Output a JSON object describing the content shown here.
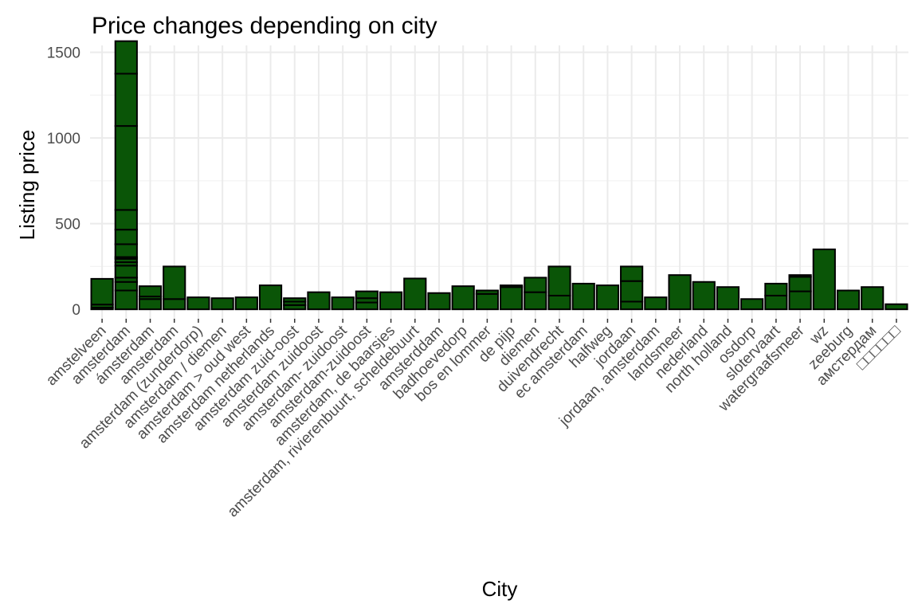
{
  "chart_data": {
    "type": "bar",
    "title": "Price changes depending on city",
    "xlabel": "City",
    "ylabel": "Listing price",
    "ylim": [
      -55,
      1540
    ],
    "yticks": [
      0,
      500,
      1000,
      1500
    ],
    "grid": true,
    "legend": "none",
    "bar_fill": "#0a5507",
    "bar_outline": "#000000",
    "categories": [
      "amstelveen",
      "amsterdam",
      "ámsterdam",
      "amsterdam",
      "amsterdam (zunderdorp)",
      "amsterdam / diemen",
      "amsterdam > oud west",
      "amsterdam netherlands",
      "amsterdam zuid-oost",
      "amsterdam zuidoost",
      "amsterdam- zuidoost",
      "amsterdam-zuidoost",
      "amsterdam, de baarsjes",
      "amsterdam, rivierenbuurt, scheldebuurt",
      "amsterddam",
      "badhoevedorp",
      "bos en lommer",
      "de pijp",
      "diemen",
      "duivendrecht",
      "ec amsterdam",
      "halfweg",
      "jordaan",
      "jordaan, amsterdam",
      "landsmeer",
      "nederland",
      "north holland",
      "osdorp",
      "slotervaart",
      "watergraafsmeer",
      "wz",
      "zeeburg",
      "амстердам",
      "□□□□□□"
    ],
    "values": [
      [
        10,
        18,
        150
      ],
      [
        110,
        50,
        25,
        70,
        20,
        20,
        10,
        75,
        85,
        115,
        490,
        305,
        190
      ],
      [
        60,
        15,
        60
      ],
      [
        60,
        190
      ],
      [
        70
      ],
      [
        65
      ],
      [
        70
      ],
      [
        140
      ],
      [
        25,
        20,
        20
      ],
      [
        100
      ],
      [
        70
      ],
      [
        40,
        25,
        40
      ],
      [
        100
      ],
      [
        180
      ],
      [
        95
      ],
      [
        135
      ],
      [
        90,
        20
      ],
      [
        130,
        10
      ],
      [
        100,
        85
      ],
      [
        80,
        170
      ],
      [
        150
      ],
      [
        140
      ],
      [
        45,
        120,
        85
      ],
      [
        70
      ],
      [
        200
      ],
      [
        160
      ],
      [
        130
      ],
      [
        60
      ],
      [
        80,
        70
      ],
      [
        105,
        85,
        10
      ],
      [
        350
      ],
      [
        110
      ],
      [
        130
      ],
      [
        30
      ]
    ]
  }
}
